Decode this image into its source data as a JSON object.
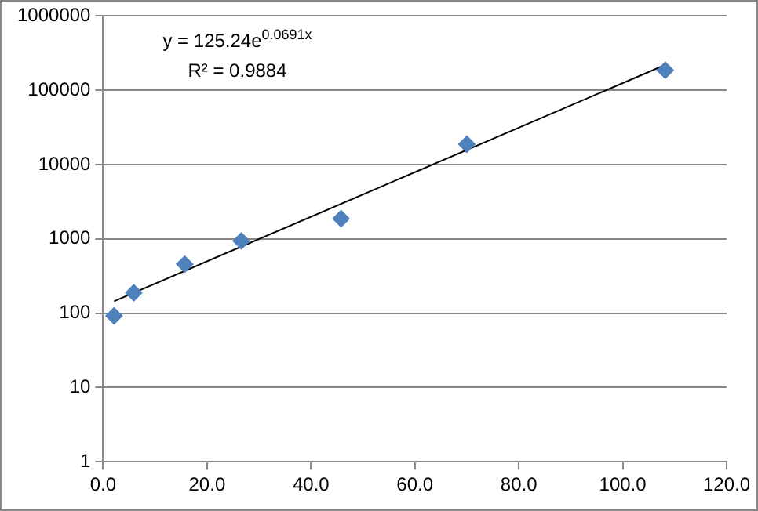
{
  "chart_data": {
    "type": "scatter",
    "marker": "diamond",
    "grid": "y",
    "legend": false,
    "log": "y",
    "xlim": [
      0,
      120
    ],
    "xticks": [
      {
        "value": 0,
        "label": "0.0"
      },
      {
        "value": 20,
        "label": "20.0"
      },
      {
        "value": 40,
        "label": "40.0"
      },
      {
        "value": 60,
        "label": "60.0"
      },
      {
        "value": 80,
        "label": "80.0"
      },
      {
        "value": 100,
        "label": "100.0"
      },
      {
        "value": 120,
        "label": "120.0"
      }
    ],
    "ylim": [
      1,
      1000000
    ],
    "yticks": [
      1,
      10,
      100,
      1000,
      10000,
      100000,
      1000000
    ],
    "series": [
      {
        "type": "scatter",
        "color": "#4f81bd",
        "x": [
          2.1,
          5.9,
          15.7,
          26.6,
          45.8,
          70.0,
          108.2
        ],
        "values": [
          92,
          188,
          457,
          938,
          1870,
          18800,
          186000
        ]
      },
      {
        "type": "line",
        "color": "#000000",
        "marker": "none",
        "x": [
          2.1,
          108.2
        ],
        "values": [
          145,
          220000
        ]
      }
    ],
    "annotations": [
      "y = 125.24e$^{0.0691x}$",
      "R² = 0.9884"
    ]
  }
}
